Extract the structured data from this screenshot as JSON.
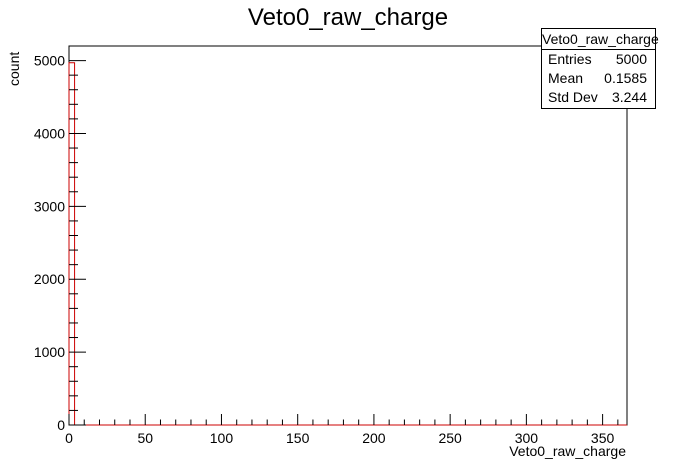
{
  "chart_data": {
    "type": "bar",
    "title": "Veto0_raw_charge",
    "xlabel": "Veto0_raw_charge",
    "ylabel": "count",
    "xlim": [
      0,
      366
    ],
    "ylim": [
      0,
      5200
    ],
    "x_ticks": [
      "0",
      "50",
      "100",
      "150",
      "200",
      "250",
      "300",
      "350"
    ],
    "y_ticks": [
      "0",
      "1000",
      "2000",
      "3000",
      "4000",
      "5000"
    ],
    "bins": [
      {
        "x_low": 0,
        "x_high": 3.66,
        "value": 4970
      },
      {
        "x_low": 3.66,
        "x_high": 366,
        "value": 0
      }
    ],
    "line_color": "#cc0000",
    "grid": false,
    "stats": {
      "name": "Veto0_raw_charge",
      "entries_label": "Entries",
      "entries": "5000",
      "mean_label": "Mean",
      "mean": "0.1585",
      "std_label": "Std Dev",
      "std": "3.244"
    }
  }
}
